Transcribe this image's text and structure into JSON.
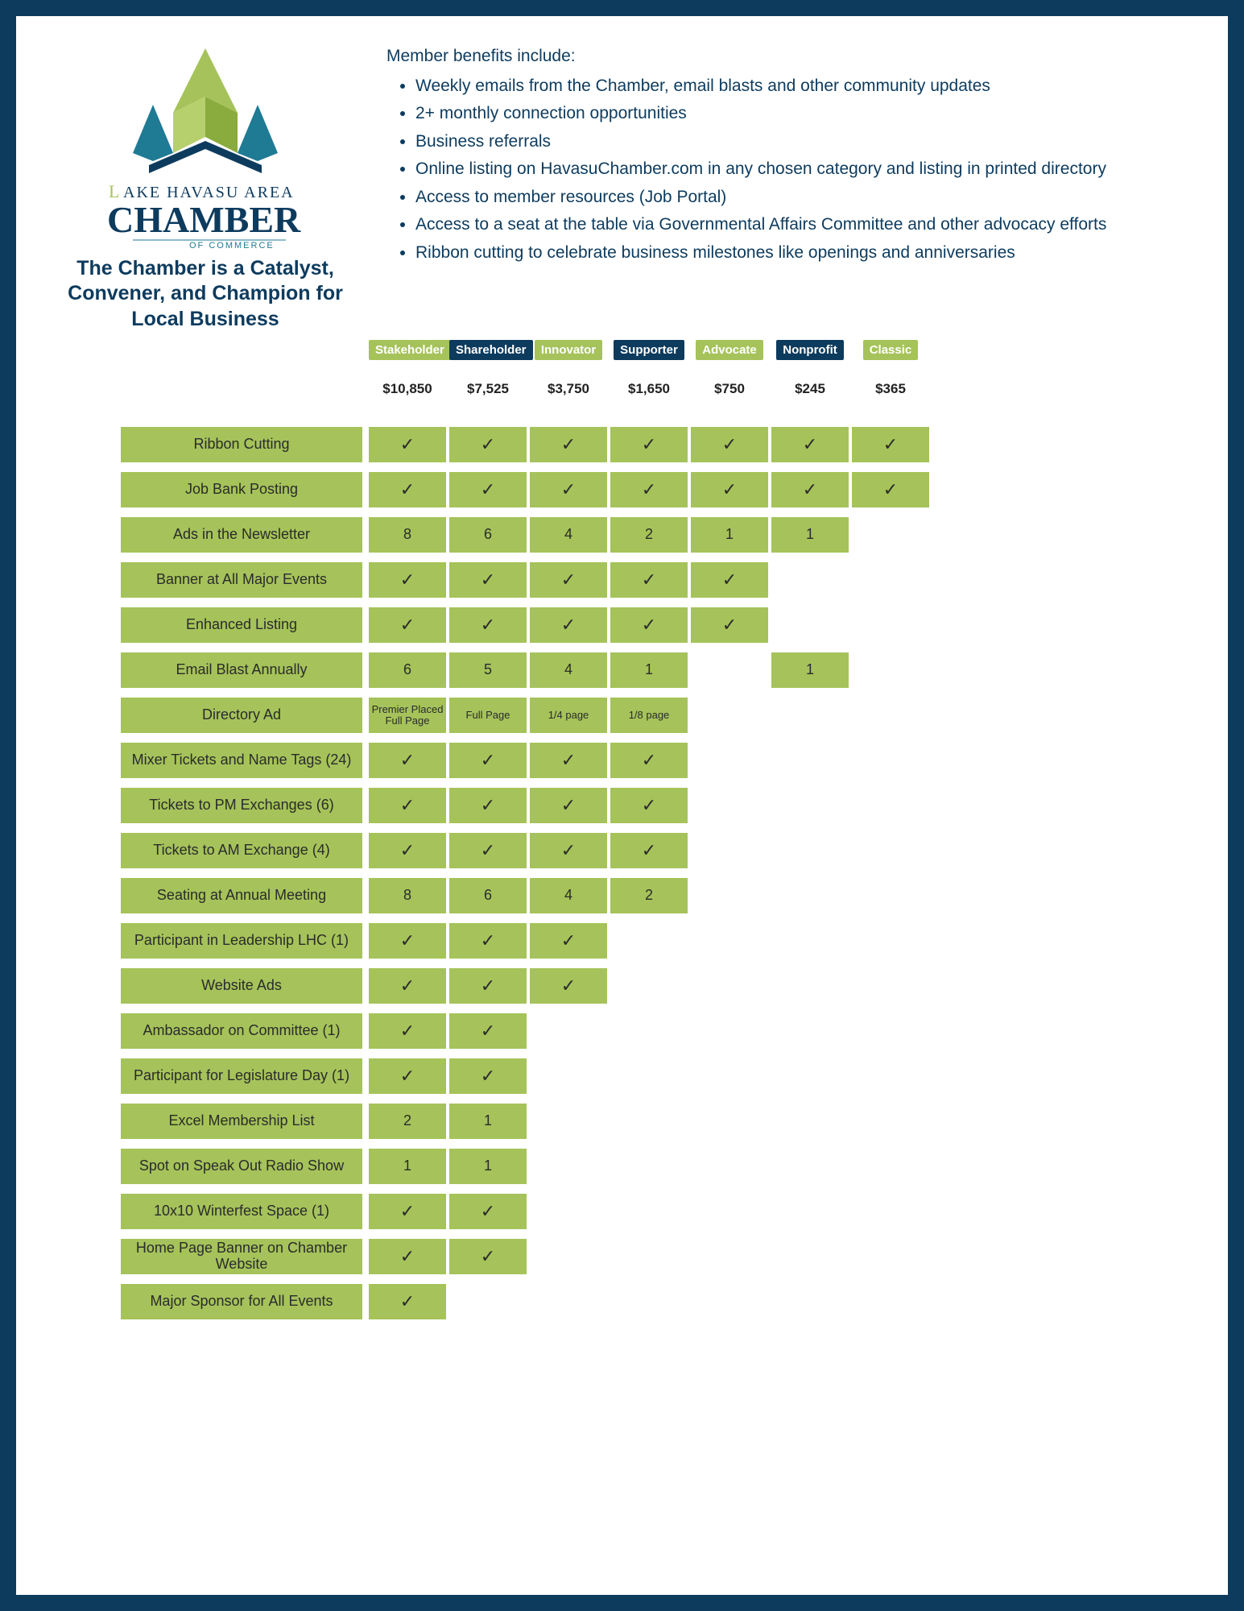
{
  "colors": {
    "page_bg": "#ffffff",
    "frame_bg": "#0d3b5e",
    "accent_green": "#a5c35a",
    "accent_navy": "#0d3b5e",
    "text_navy": "#0d3b5e",
    "cell_text": "#2b2b2b"
  },
  "logo": {
    "line1": "AKE HAVASU AREA",
    "line2": "CHAMBER",
    "line3": "OF COMMERCE",
    "tagline": "The Chamber is a Catalyst, Convener, and Champion for Local Business"
  },
  "benefits": {
    "intro": "Member benefits include:",
    "items": [
      "Weekly emails from the Chamber, email blasts and other community updates",
      "2+ monthly connection opportunities",
      "Business referrals",
      "Online listing on HavasuChamber.com in any chosen category and listing in printed directory",
      "Access to member resources (Job Portal)",
      "Access to a seat at the table via Governmental Affairs Committee and other advocacy efforts",
      "Ribbon cutting to celebrate business milestones like openings and anniversaries"
    ]
  },
  "tiers": [
    {
      "name": "Stakeholder",
      "price": "$10,850",
      "style": "green"
    },
    {
      "name": "Shareholder",
      "price": "$7,525",
      "style": "navy"
    },
    {
      "name": "Innovator",
      "price": "$3,750",
      "style": "green"
    },
    {
      "name": "Supporter",
      "price": "$1,650",
      "style": "navy"
    },
    {
      "name": "Advocate",
      "price": "$750",
      "style": "green"
    },
    {
      "name": "Nonprofit",
      "price": "$245",
      "style": "navy"
    },
    {
      "name": "Classic",
      "price": "$365",
      "style": "green"
    }
  ],
  "rows": [
    {
      "label": "Ribbon Cutting",
      "cells": [
        "✓",
        "✓",
        "✓",
        "✓",
        "✓",
        "✓",
        "✓"
      ]
    },
    {
      "label": "Job Bank Posting",
      "cells": [
        "✓",
        "✓",
        "✓",
        "✓",
        "✓",
        "✓",
        "✓"
      ]
    },
    {
      "label": "Ads in the Newsletter",
      "cells": [
        "8",
        "6",
        "4",
        "2",
        "1",
        "1",
        null
      ]
    },
    {
      "label": "Banner at All Major Events",
      "cells": [
        "✓",
        "✓",
        "✓",
        "✓",
        "✓",
        null,
        null
      ]
    },
    {
      "label": "Enhanced Listing",
      "cells": [
        "✓",
        "✓",
        "✓",
        "✓",
        "✓",
        null,
        null
      ]
    },
    {
      "label": "Email Blast Annually",
      "cells": [
        "6",
        "5",
        "4",
        "1",
        null,
        "1",
        null
      ]
    },
    {
      "label": "Directory Ad",
      "small": true,
      "cells": [
        "Premier Placed Full Page",
        "Full Page",
        "1/4 page",
        "1/8 page",
        null,
        null,
        null
      ]
    },
    {
      "label": "Mixer Tickets and Name Tags (24)",
      "cells": [
        "✓",
        "✓",
        "✓",
        "✓",
        null,
        null,
        null
      ]
    },
    {
      "label": "Tickets to PM Exchanges (6)",
      "cells": [
        "✓",
        "✓",
        "✓",
        "✓",
        null,
        null,
        null
      ]
    },
    {
      "label": "Tickets to AM Exchange (4)",
      "cells": [
        "✓",
        "✓",
        "✓",
        "✓",
        null,
        null,
        null
      ]
    },
    {
      "label": "Seating at Annual Meeting",
      "cells": [
        "8",
        "6",
        "4",
        "2",
        null,
        null,
        null
      ]
    },
    {
      "label": "Participant in Leadership LHC (1)",
      "cells": [
        "✓",
        "✓",
        "✓",
        null,
        null,
        null,
        null
      ]
    },
    {
      "label": "Website Ads",
      "cells": [
        "✓",
        "✓",
        "✓",
        null,
        null,
        null,
        null
      ]
    },
    {
      "label": "Ambassador on Committee (1)",
      "cells": [
        "✓",
        "✓",
        null,
        null,
        null,
        null,
        null
      ]
    },
    {
      "label": "Participant for Legislature Day (1)",
      "cells": [
        "✓",
        "✓",
        null,
        null,
        null,
        null,
        null
      ]
    },
    {
      "label": "Excel Membership List",
      "cells": [
        "2",
        "1",
        null,
        null,
        null,
        null,
        null
      ]
    },
    {
      "label": "Spot on Speak Out Radio Show",
      "cells": [
        "1",
        "1",
        null,
        null,
        null,
        null,
        null
      ]
    },
    {
      "label": "10x10 Winterfest Space (1)",
      "cells": [
        "✓",
        "✓",
        null,
        null,
        null,
        null,
        null
      ]
    },
    {
      "label": "Home Page Banner on Chamber Website",
      "cells": [
        "✓",
        "✓",
        null,
        null,
        null,
        null,
        null
      ]
    },
    {
      "label": "Major Sponsor for All Events",
      "cells": [
        "✓",
        null,
        null,
        null,
        null,
        null,
        null
      ]
    }
  ]
}
